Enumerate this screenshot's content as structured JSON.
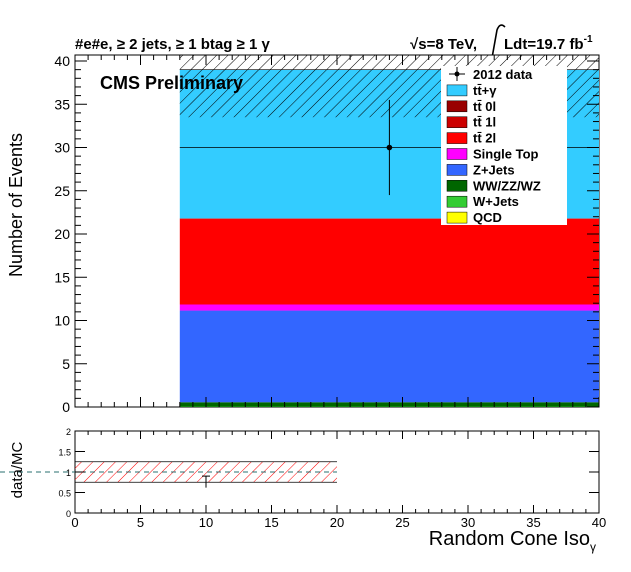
{
  "header": {
    "selection_prefix": "#e",
    "selection_mid": "#e",
    "selection_suffix": ", ≥ 2 jets, ≥ 1 btag ≥ 1 γ",
    "energy_sqrt": "√",
    "energy_label": "s=8 TeV,",
    "lumi_label": "Ldt=19.7 fb",
    "lumi_exp": "-1"
  },
  "cms_label": "CMS Preliminary",
  "chart_data": [
    {
      "type": "bar",
      "subtype": "stacked-histogram",
      "ylabel": "Number of Events",
      "xlim": [
        0,
        40
      ],
      "ylim": [
        0,
        41
      ],
      "x_ticks": [
        "0",
        "5",
        "10",
        "15",
        "20",
        "25",
        "30",
        "35",
        "40"
      ],
      "y_ticks": [
        "0",
        "5",
        "10",
        "15",
        "20",
        "25",
        "30",
        "35",
        "40"
      ],
      "bins": [
        [
          0,
          8
        ],
        [
          8,
          40
        ]
      ],
      "series": [
        {
          "name": "QCD",
          "color": "#ffff00",
          "values": [
            0,
            0
          ]
        },
        {
          "name": "W+Jets",
          "color": "#33cc33",
          "values": [
            0,
            0.05
          ]
        },
        {
          "name": "WW/ZZ/WZ",
          "color": "#006600",
          "values": [
            0,
            0.5
          ]
        },
        {
          "name": "Z+Jets",
          "color": "#3366ff",
          "values": [
            0,
            10.6
          ]
        },
        {
          "name": "Single Top",
          "color": "#ff00ff",
          "values": [
            0,
            0.7
          ]
        },
        {
          "name": "tt̄ 2l",
          "color": "#ff0000",
          "values": [
            0,
            9.9
          ]
        },
        {
          "name": "tt̄ 1l",
          "color": "#cc0000",
          "values": [
            0,
            0.05
          ]
        },
        {
          "name": "tt̄ 0l",
          "color": "#990000",
          "values": [
            0,
            0
          ]
        },
        {
          "name": "tt̄+γ",
          "color": "#33ccff",
          "values": [
            0,
            17.2
          ]
        }
      ],
      "uncertainty_band": {
        "bin": [
          8,
          40
        ],
        "low": 33.5,
        "high": 41
      },
      "data": {
        "name": "2012 data",
        "x": 24,
        "y": 30,
        "err": 5.5
      },
      "legend": {
        "placement": "top-right",
        "entries": [
          "2012 data",
          "tt̄+γ",
          "tt̄ 0l",
          "tt̄ 1l",
          "tt̄ 2l",
          "Single Top",
          "Z+Jets",
          "WW/ZZ/WZ",
          "W+Jets",
          "QCD"
        ]
      }
    },
    {
      "type": "scatter",
      "subtype": "ratio",
      "ylabel": "data/MC",
      "xlabel": "Random Cone Iso",
      "xlabel_sub": "γ",
      "xlim": [
        0,
        40
      ],
      "ylim": [
        0,
        2
      ],
      "x_ticks": [
        "0",
        "5",
        "10",
        "15",
        "20",
        "25",
        "30",
        "35",
        "40"
      ],
      "y_ticks": [
        "0",
        "0.5",
        "1",
        "1.5",
        "2"
      ],
      "reference_line": 1,
      "band": {
        "x": [
          0,
          20
        ],
        "low": 0.75,
        "high": 1.25
      },
      "points": [
        {
          "x": 10,
          "y": 0.9,
          "err_low": 0.28,
          "err_high": 0
        }
      ]
    }
  ]
}
